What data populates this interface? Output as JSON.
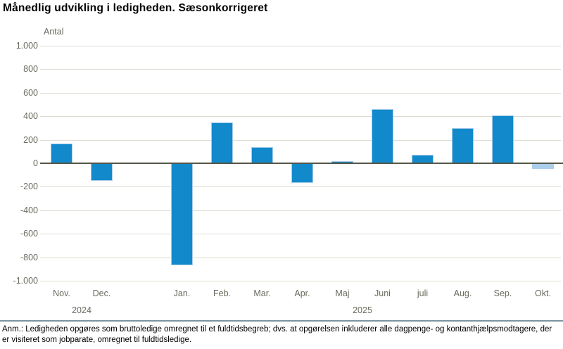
{
  "title": "Månedlig udvikling i ledigheden. Sæsonkorrigeret",
  "footnote": "Anm.: Ledigheden opgøres som bruttoledige omregnet til et fuldtidsbegreb; dvs. at opgørelsen inkluderer alle dagpenge- og kontanthjælpsmodtagere, der er visiteret som jobparate, omregnet til fuldtidsledige.",
  "chart_data": {
    "type": "bar",
    "title": "Månedlig udvikling i ledigheden. Sæsonkorrigeret",
    "ylabel": "Antal",
    "xlabel": "",
    "ylim": [
      -1000,
      1000
    ],
    "ytick_step": 200,
    "ytick_labels": [
      "1.000",
      "800",
      "600",
      "400",
      "200",
      "0",
      "-200",
      "-400",
      "-600",
      "-800",
      "-1.000"
    ],
    "grid": true,
    "legend": "none",
    "categories": [
      "Nov.",
      "Dec.",
      "Jan.",
      "Feb.",
      "Mar.",
      "Apr.",
      "Maj",
      "Juni",
      "juli",
      "Aug.",
      "Sep.",
      "Okt."
    ],
    "values": [
      170,
      -150,
      -870,
      350,
      140,
      -170,
      20,
      460,
      70,
      300,
      410,
      -50
    ],
    "points": [
      {
        "month": "Nov.",
        "year": "2024",
        "value": 170
      },
      {
        "month": "Dec.",
        "year": "2024",
        "value": -150
      },
      {
        "month": "Jan.",
        "year": "2025",
        "value": -870
      },
      {
        "month": "Feb.",
        "year": "2025",
        "value": 350
      },
      {
        "month": "Mar.",
        "year": "2025",
        "value": 140
      },
      {
        "month": "Apr.",
        "year": "2025",
        "value": -170
      },
      {
        "month": "Maj",
        "year": "2025",
        "value": 20
      },
      {
        "month": "Juni",
        "year": "2025",
        "value": 460
      },
      {
        "month": "juli",
        "year": "2025",
        "value": 70
      },
      {
        "month": "Aug.",
        "year": "2025",
        "value": 300
      },
      {
        "month": "Sep.",
        "year": "2025",
        "value": 410
      },
      {
        "month": "Okt.",
        "year": "2025",
        "value": -50,
        "light": true
      }
    ],
    "year_labels": [
      "2024",
      "2025"
    ],
    "colors": {
      "bar": "#1289ca",
      "bar_stroke": "#a9cdea",
      "bar_light": "#a9cdea",
      "grid": "#dcdcd2",
      "zero_line": "#56564b",
      "axis_text": "#6a6a5e",
      "separator": "#7e94a1"
    }
  }
}
